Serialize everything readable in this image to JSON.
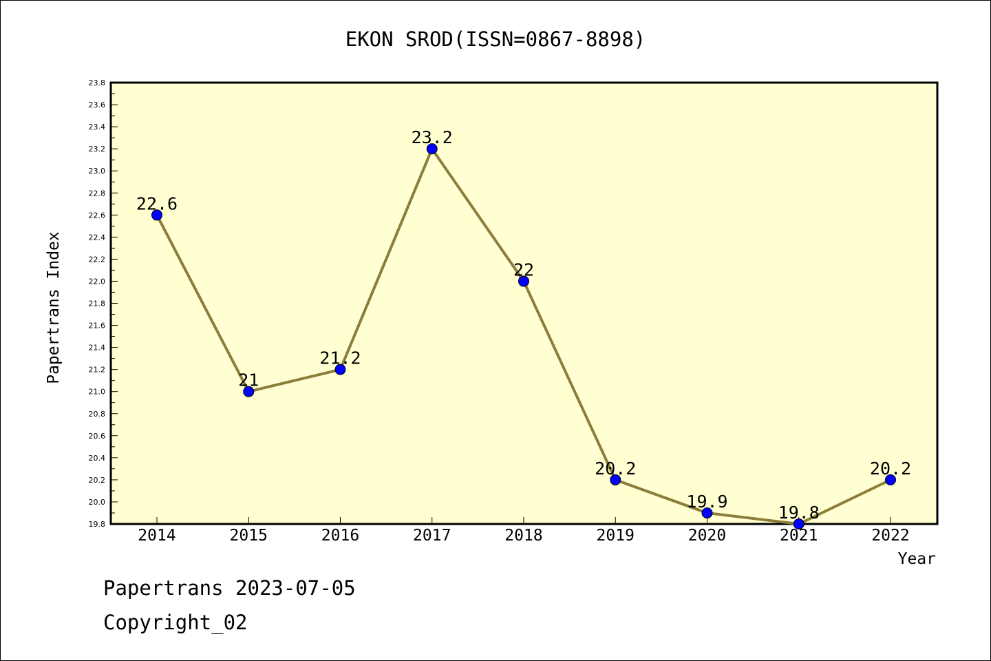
{
  "chart_data": {
    "type": "line",
    "title": "EKON SROD(ISSN=0867-8898)",
    "xlabel": "Year",
    "ylabel": "Papertrans Index",
    "categories": [
      "2014",
      "2015",
      "2016",
      "2017",
      "2018",
      "2019",
      "2020",
      "2021",
      "2022"
    ],
    "values": [
      22.6,
      21.0,
      21.2,
      23.2,
      22.0,
      20.2,
      19.9,
      19.8,
      20.2
    ],
    "data_labels": [
      "22.6",
      "21",
      "21.2",
      "23.2",
      "22",
      "20.2",
      "19.9",
      "19.8",
      "20.2"
    ],
    "ylim": [
      19.8,
      23.8
    ],
    "yticks": [
      "19.8",
      "20.0",
      "20.2",
      "20.4",
      "20.6",
      "20.8",
      "21.0",
      "21.2",
      "21.4",
      "21.6",
      "21.8",
      "22.0",
      "22.2",
      "22.4",
      "22.6",
      "22.8",
      "23.0",
      "23.2",
      "23.4",
      "23.6",
      "23.8"
    ],
    "grid": false,
    "colors": {
      "plot_background": "#ffffd2",
      "line": "#8c7e3a",
      "marker": "#0000ff"
    }
  },
  "footer": {
    "line1": "Papertrans 2023-07-05",
    "line2": "Copyright_02"
  }
}
